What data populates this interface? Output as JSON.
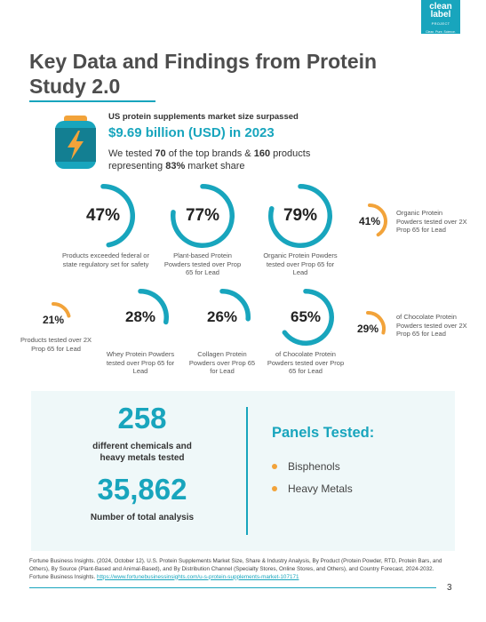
{
  "logo": {
    "line1": "clean",
    "line2": "label",
    "line3": "PROJECT",
    "line4": "Clean. Pure. Science."
  },
  "title": "Key Data and Findings from Protein Study 2.0",
  "market": {
    "label": "US protein supplements market size surpassed",
    "value": "$9.69 billion (USD) in 2023",
    "tested_pre": "We tested ",
    "tested_n1": "70",
    "tested_mid": " of the top brands & ",
    "tested_n2": "160",
    "tested_post": " products representing ",
    "tested_share": "83%",
    "tested_end": " market share"
  },
  "colors": {
    "teal": "#18a5bd",
    "orange": "#f2a33a",
    "panel_bg": "#eff8f9"
  },
  "stats": [
    {
      "value": "47%",
      "fraction": 0.47,
      "color": "teal",
      "caption": "Products exceeded federal or state regulatory set for safety"
    },
    {
      "value": "77%",
      "fraction": 0.77,
      "color": "teal",
      "caption": "Plant-based Protein Powders tested over Prop 65 for Lead"
    },
    {
      "value": "79%",
      "fraction": 0.79,
      "color": "teal",
      "caption": "Organic Protein Powders tested over Prop 65 for Lead"
    },
    {
      "value": "41%",
      "fraction": 0.41,
      "color": "orange",
      "caption": "Organic Protein Powders tested over 2X Prop 65 for Lead"
    },
    {
      "value": "21%",
      "fraction": 0.21,
      "color": "orange",
      "caption": "Products tested over 2X Prop 65 for Lead"
    },
    {
      "value": "28%",
      "fraction": 0.28,
      "color": "teal",
      "caption": "Whey Protein Powders tested over Prop 65 for Lead"
    },
    {
      "value": "26%",
      "fraction": 0.26,
      "color": "teal",
      "caption": "Collagen Protein Powders over Prop 65 for Lead"
    },
    {
      "value": "65%",
      "fraction": 0.65,
      "color": "teal",
      "caption": "of Chocolate Protein Powders tested over Prop 65 for Lead"
    },
    {
      "value": "29%",
      "fraction": 0.29,
      "color": "orange",
      "caption": "of Chocolate Protein Powders tested over 2X Prop 65 for Lead"
    }
  ],
  "summary": {
    "chemicals_count": "258",
    "chemicals_label": "different chemicals and heavy metals tested",
    "analysis_count": "35,862",
    "analysis_label": "Number of total analysis",
    "panels_title": "Panels Tested:",
    "panels": [
      "Bisphenols",
      "Heavy Metals"
    ]
  },
  "footnote": {
    "text": "Fortune Business Insights. (2024, October 12). U.S. Protein Supplements Market Size, Share & Industry Analysis, By Product (Protein Powder, RTD, Protein Bars, and Others), By Source (Plant-Based and Animal-Based), and By Distribution Channel (Specialty Stores, Online Stores, and Others), and Country Forecast, 2024-2032. Fortune Business Insights. ",
    "link": "https://www.fortunebusinessinsights.com/u-s-protein-supplements-market-107171"
  },
  "page_number": "3"
}
